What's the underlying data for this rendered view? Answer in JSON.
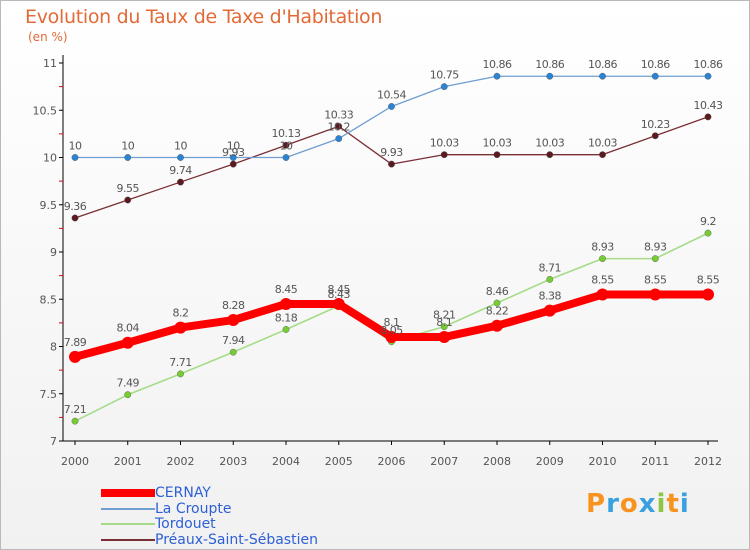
{
  "title": "Evolution du Taux de Taxe d'Habitation",
  "subtitle": "(en %)",
  "brand": "Proxiti",
  "colors": {
    "title": "#e36a37",
    "axis": "#000000",
    "tick_red": "#e3001b",
    "label": "#555555"
  },
  "chart_data": {
    "type": "line",
    "title": "Evolution du Taux de Taxe d'Habitation",
    "ylabel": "(en %)",
    "xlabel": "",
    "x": [
      2000,
      2001,
      2002,
      2003,
      2004,
      2005,
      2006,
      2007,
      2008,
      2009,
      2010,
      2011,
      2012
    ],
    "ylim": [
      7,
      11
    ],
    "yticks": [
      7,
      7.5,
      8,
      8.5,
      9,
      9.5,
      10,
      10.5,
      11
    ],
    "ytick_labels": [
      "7",
      "7.5",
      "8",
      "8.5",
      "9",
      "9.5",
      "10",
      "10.5",
      "11"
    ],
    "grid": false,
    "legend": "bottom-left",
    "series": [
      {
        "name": "CERNAY",
        "color": "#ff0000",
        "marker": "#ff0000",
        "width": 8,
        "values": [
          7.89,
          8.04,
          8.2,
          8.28,
          8.45,
          8.45,
          8.1,
          8.1,
          8.22,
          8.38,
          8.55,
          8.55,
          8.55
        ],
        "labels": [
          "7.89",
          "8.04",
          "8.2",
          "8.28",
          "8.45",
          "8.45",
          "8.1",
          "8.1",
          "8.22",
          "8.38",
          "8.55",
          "8.55",
          "8.55"
        ]
      },
      {
        "name": "La Croupte",
        "color": "#6f9ed1",
        "marker": "#2b83d3",
        "width": 1.3,
        "values": [
          10,
          10,
          10,
          10,
          10,
          10.2,
          10.54,
          10.75,
          10.86,
          10.86,
          10.86,
          10.86,
          10.86
        ],
        "labels": [
          "10",
          "10",
          "10",
          "10",
          "10",
          "10.2",
          "10.54",
          "10.75",
          "10.86",
          "10.86",
          "10.86",
          "10.86",
          "10.86"
        ]
      },
      {
        "name": "Tordouet",
        "color": "#a6dc88",
        "marker": "#77cc33",
        "width": 1.6,
        "values": [
          7.21,
          7.49,
          7.71,
          7.94,
          8.18,
          8.43,
          8.05,
          8.21,
          8.46,
          8.71,
          8.93,
          8.93,
          9.2
        ],
        "labels": [
          "7.21",
          "7.49",
          "7.71",
          "7.94",
          "8.18",
          "8.43",
          "8.05",
          "8.21",
          "8.46",
          "8.71",
          "8.93",
          "8.93",
          "9.2"
        ]
      },
      {
        "name": "Préaux-Saint-Sébastien",
        "color": "#7a2e35",
        "marker": "#5a1a20",
        "width": 1.3,
        "values": [
          9.36,
          9.55,
          9.74,
          9.93,
          10.13,
          10.33,
          9.93,
          10.03,
          10.03,
          10.03,
          10.03,
          10.23,
          10.43
        ],
        "labels": [
          "9.36",
          "9.55",
          "9.74",
          "9.93",
          "10.13",
          "10.33",
          "9.93",
          "10.03",
          "10.03",
          "10.03",
          "10.03",
          "10.23",
          "10.43"
        ]
      }
    ]
  }
}
